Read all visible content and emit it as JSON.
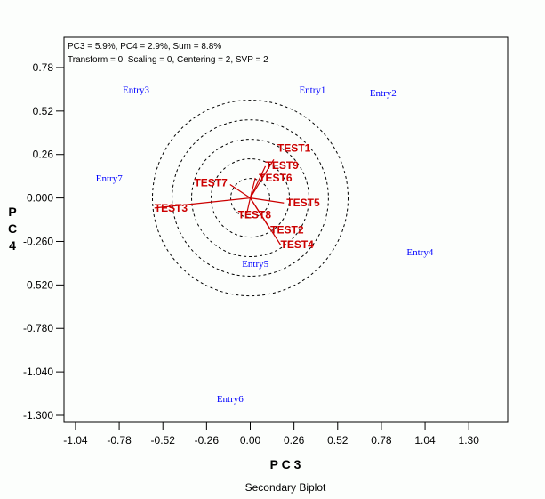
{
  "chart_data": {
    "type": "scatter",
    "title": "Secondary Biplot",
    "info_lines": [
      "PC3 = 5.9%, PC4 = 2.9%, Sum = 8.8%",
      "Transform = 0, Scaling = 0, Centering = 2, SVP = 2"
    ],
    "xlabel": "P C 3",
    "ylabel": [
      "P",
      "C",
      "4"
    ],
    "xlim": [
      -1.12,
      1.53
    ],
    "ylim": [
      -1.35,
      0.96
    ],
    "xticks": [
      -1.04,
      -0.78,
      -0.52,
      -0.26,
      0.0,
      0.26,
      0.52,
      0.78,
      1.04,
      1.3
    ],
    "xtick_labels": [
      "-1.04",
      "-0.78",
      "-0.52",
      "-0.26",
      "0.00",
      "0.26",
      "0.52",
      "0.78",
      "1.04",
      "1.30"
    ],
    "yticks": [
      0.78,
      0.52,
      0.26,
      0.0,
      -0.26,
      -0.52,
      -0.78,
      -1.04,
      -1.3
    ],
    "ytick_labels": [
      "0.78",
      "0.52",
      "0.26",
      "0.000",
      "-0.260",
      "-0.520",
      "-0.780",
      "-1.040",
      "-1.300"
    ],
    "entries": [
      {
        "name": "Entry1",
        "x": 0.37,
        "y": 0.65
      },
      {
        "name": "Entry2",
        "x": 0.79,
        "y": 0.63
      },
      {
        "name": "Entry3",
        "x": -0.68,
        "y": 0.65
      },
      {
        "name": "Entry4",
        "x": 1.01,
        "y": -0.32
      },
      {
        "name": "Entry5",
        "x": 0.03,
        "y": -0.39
      },
      {
        "name": "Entry6",
        "x": -0.12,
        "y": -1.2
      },
      {
        "name": "Entry7",
        "x": -0.84,
        "y": 0.12
      }
    ],
    "testers": [
      {
        "name": "TEST1",
        "x": 0.14,
        "y": 0.23
      },
      {
        "name": "TEST9",
        "x": 0.09,
        "y": 0.19
      },
      {
        "name": "TEST6",
        "x": 0.03,
        "y": 0.12
      },
      {
        "name": "TEST7",
        "x": -0.12,
        "y": 0.08
      },
      {
        "name": "TEST5",
        "x": 0.2,
        "y": -0.03
      },
      {
        "name": "TEST8",
        "x": -0.02,
        "y": -0.09
      },
      {
        "name": "TEST2",
        "x": 0.12,
        "y": -0.19
      },
      {
        "name": "TEST4",
        "x": 0.18,
        "y": -0.28
      },
      {
        "name": "TEST3",
        "x": -0.57,
        "y": -0.06
      }
    ],
    "circle_radii": [
      0.116,
      0.233,
      0.349,
      0.465,
      0.582
    ],
    "colors": {
      "entry": "#0000ff",
      "tester": "#cc0000"
    }
  }
}
